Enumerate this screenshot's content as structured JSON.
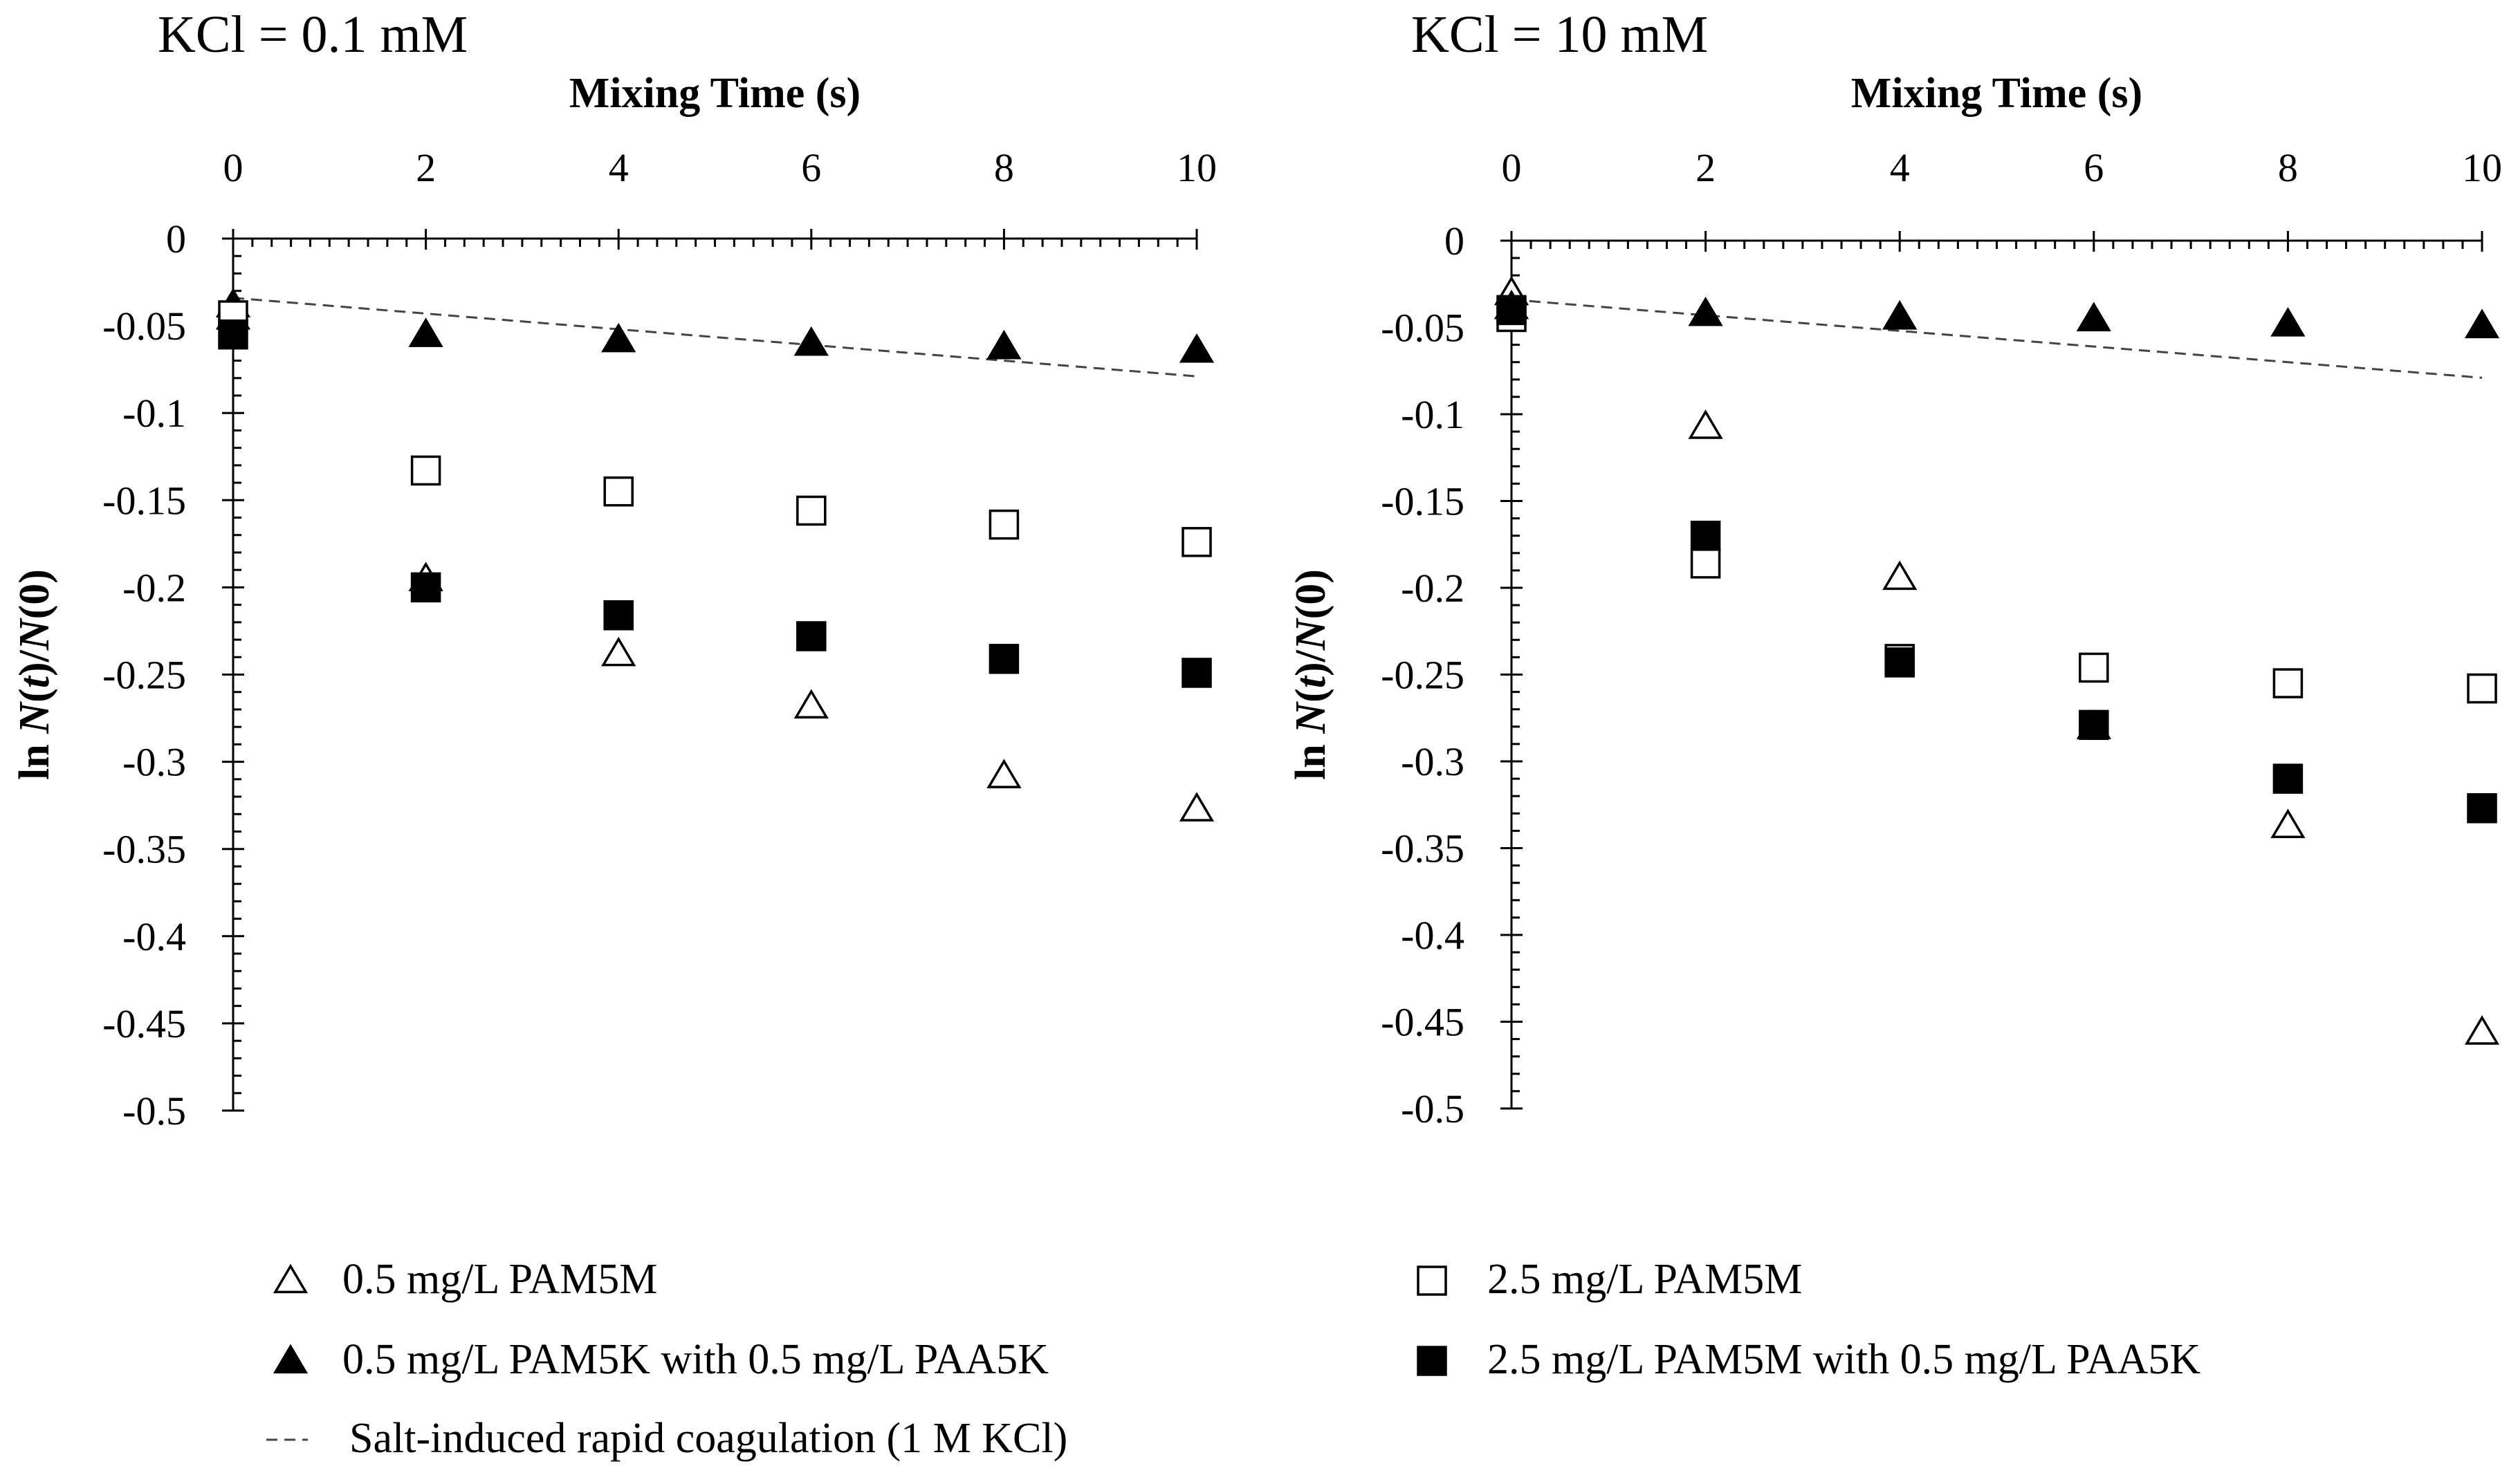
{
  "chart_data": [
    {
      "type": "scatter",
      "title": "KCl = 0.1 mM",
      "xlabel": "Mixing Time (s)",
      "ylabel_parts": [
        "ln ",
        "N",
        "(",
        "t",
        ")/",
        "N",
        "(0)"
      ],
      "xlim": [
        0,
        10
      ],
      "ylim": [
        -0.5,
        0
      ],
      "x_ticks": [
        0,
        2,
        4,
        6,
        8,
        10
      ],
      "y_ticks": [
        0,
        -0.05,
        -0.1,
        -0.15,
        -0.2,
        -0.25,
        -0.3,
        -0.35,
        -0.4,
        -0.45,
        -0.5
      ],
      "x_tick_labels": [
        "0",
        "2",
        "4",
        "6",
        "8",
        "10"
      ],
      "y_tick_labels": [
        "0",
        "-0.05",
        "-0.1",
        "-0.15",
        "-0.2",
        "-0.25",
        "-0.3",
        "-0.35",
        "-0.4",
        "-0.45",
        "-0.5"
      ],
      "series": [
        {
          "key": "pam5m-05",
          "x": [
            0,
            2,
            4,
            6,
            8,
            10
          ],
          "y": [
            -0.045,
            -0.195,
            -0.238,
            -0.268,
            -0.308,
            -0.327
          ]
        },
        {
          "key": "pam5k-paa5k",
          "x": [
            0,
            2,
            4,
            6,
            8,
            10
          ],
          "y": [
            -0.038,
            -0.055,
            -0.058,
            -0.06,
            -0.062,
            -0.064
          ]
        },
        {
          "key": "pam5m-25",
          "x": [
            0,
            2,
            4,
            6,
            8,
            10
          ],
          "y": [
            -0.044,
            -0.133,
            -0.145,
            -0.156,
            -0.164,
            -0.174
          ]
        },
        {
          "key": "pam5m-25-paa5k",
          "x": [
            0,
            2,
            4,
            6,
            8,
            10
          ],
          "y": [
            -0.055,
            -0.2,
            -0.216,
            -0.228,
            -0.241,
            -0.249
          ]
        }
      ],
      "reference_line": {
        "x": [
          0,
          10
        ],
        "y": [
          -0.034,
          -0.079
        ]
      }
    },
    {
      "type": "scatter",
      "title": "KCl = 10 mM",
      "xlabel": "Mixing Time (s)",
      "ylabel_parts": [
        "ln ",
        "N",
        "(",
        "t",
        ")/",
        "N",
        "(0)"
      ],
      "xlim": [
        0,
        10
      ],
      "ylim": [
        -0.5,
        0
      ],
      "x_ticks": [
        0,
        2,
        4,
        6,
        8,
        10
      ],
      "y_ticks": [
        0,
        -0.05,
        -0.1,
        -0.15,
        -0.2,
        -0.25,
        -0.3,
        -0.35,
        -0.4,
        -0.45,
        -0.5
      ],
      "x_tick_labels": [
        "0",
        "2",
        "4",
        "6",
        "8",
        "10"
      ],
      "y_tick_labels": [
        "0",
        "-0.05",
        "-0.1",
        "-0.15",
        "-0.2",
        "-0.25",
        "-0.3",
        "-0.35",
        "-0.4",
        "-0.45",
        "-0.5"
      ],
      "series": [
        {
          "key": "pam5m-05",
          "x": [
            0,
            2,
            4,
            6,
            8,
            10
          ],
          "y": [
            -0.03,
            -0.107,
            -0.194,
            -0.28,
            -0.337,
            -0.456
          ]
        },
        {
          "key": "pam5k-paa5k",
          "x": [
            0,
            2,
            4,
            6,
            8,
            10
          ],
          "y": [
            -0.038,
            -0.042,
            -0.044,
            -0.045,
            -0.048,
            -0.049
          ]
        },
        {
          "key": "pam5m-25",
          "x": [
            0,
            2,
            4,
            6,
            8,
            10
          ],
          "y": [
            -0.044,
            -0.186,
            -0.241,
            -0.246,
            -0.255,
            -0.258
          ]
        },
        {
          "key": "pam5m-25-paa5k",
          "x": [
            0,
            2,
            4,
            6,
            8,
            10
          ],
          "y": [
            -0.04,
            -0.17,
            -0.243,
            -0.279,
            -0.31,
            -0.327
          ]
        }
      ],
      "reference_line": {
        "x": [
          0,
          10
        ],
        "y": [
          -0.034,
          -0.079
        ]
      }
    }
  ],
  "legend": {
    "items": [
      {
        "key": "pam5m-05",
        "marker": "open-triangle",
        "label": "0.5 mg/L PAM5M"
      },
      {
        "key": "pam5m-25",
        "marker": "open-square",
        "label": "2.5 mg/L PAM5M"
      },
      {
        "key": "pam5k-paa5k",
        "marker": "filled-triangle",
        "label": "0.5 mg/L PAM5K with 0.5 mg/L PAA5K"
      },
      {
        "key": "pam5m-25-paa5k",
        "marker": "filled-square",
        "label": "2.5 mg/L PAM5M with 0.5 mg/L PAA5K"
      },
      {
        "key": "rapid-coagulation",
        "marker": "dashed-line",
        "label": "Salt-induced rapid coagulation (1 M KCl)"
      }
    ]
  },
  "colors": {
    "ink": "#000000",
    "reference_line": "#444444",
    "background": "#ffffff"
  }
}
